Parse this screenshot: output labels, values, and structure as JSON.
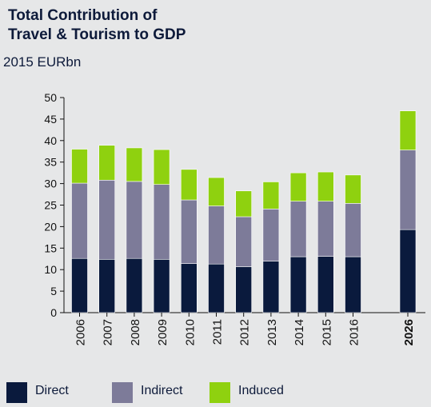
{
  "title_line1": "Total Contribution of",
  "title_line2": "Travel & Tourism to GDP",
  "subtitle": "2015 EURbn",
  "colors": {
    "direct": "#0a1a3d",
    "indirect": "#7d7b99",
    "induced": "#8fd10f",
    "axis": "#111111"
  },
  "chart_data": {
    "type": "bar",
    "stacked": true,
    "categories": [
      "2006",
      "2007",
      "2008",
      "2009",
      "2010",
      "2011",
      "2012",
      "2013",
      "2014",
      "2015",
      "2016",
      "2026"
    ],
    "series": [
      {
        "name": "Direct",
        "values": [
          12.6,
          12.4,
          12.6,
          12.4,
          11.4,
          11.3,
          10.7,
          12.0,
          13.0,
          13.1,
          13.0,
          19.3
        ]
      },
      {
        "name": "Indirect",
        "values": [
          17.5,
          18.4,
          17.9,
          17.4,
          14.8,
          13.5,
          11.6,
          12.1,
          12.9,
          12.8,
          12.4,
          18.5
        ]
      },
      {
        "name": "Induced",
        "values": [
          7.9,
          8.1,
          7.8,
          8.1,
          7.1,
          6.6,
          6.0,
          6.3,
          6.6,
          6.8,
          6.6,
          9.1
        ]
      }
    ],
    "ylim": [
      0,
      50
    ],
    "yticks": [
      "0",
      "5",
      "10",
      "15",
      "20",
      "25",
      "30",
      "35",
      "40",
      "45",
      "50"
    ],
    "highlight_category": "2026",
    "legend_position": "bottom",
    "grid": false
  }
}
